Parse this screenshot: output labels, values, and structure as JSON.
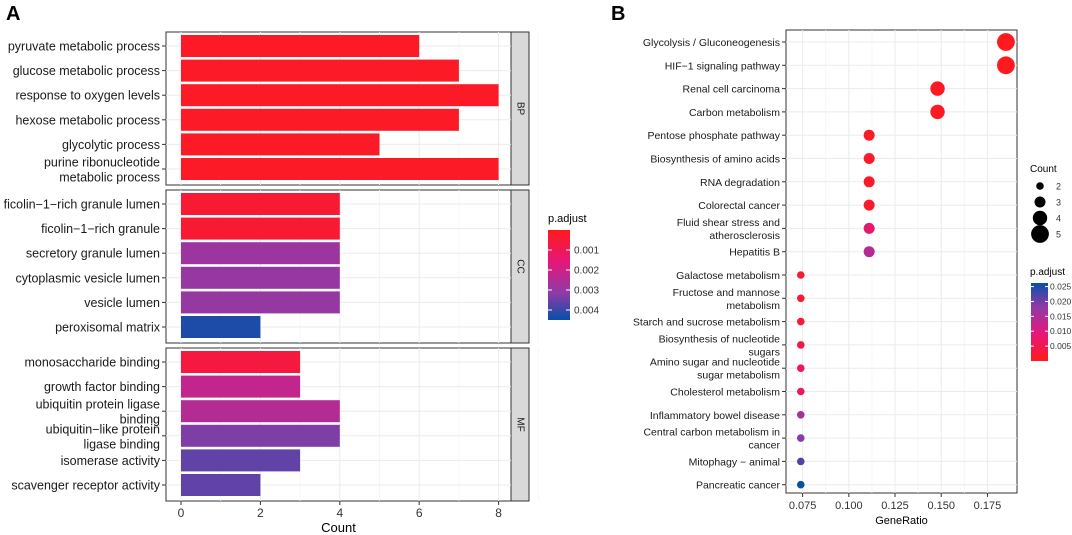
{
  "chart_data": [
    {
      "panel": "A",
      "type": "bar",
      "orientation": "horizontal",
      "xlabel": "Count",
      "xlim": [
        0,
        8.4
      ],
      "xticks": [
        0,
        2,
        4,
        6,
        8
      ],
      "facets": [
        {
          "strip": "BP",
          "categories": [
            "pyruvate metabolic process",
            "glucose metabolic process",
            "response to oxygen levels",
            "hexose metabolic process",
            "glycolytic process",
            "purine ribonucleotide metabolic process"
          ],
          "label_lines": [
            [
              "pyruvate metabolic process"
            ],
            [
              "glucose metabolic process"
            ],
            [
              "response to oxygen levels"
            ],
            [
              "hexose metabolic process"
            ],
            [
              "glycolytic process"
            ],
            [
              "purine ribonucleotide",
              "metabolic process"
            ]
          ],
          "values": [
            6,
            7,
            8,
            7,
            5,
            8
          ],
          "p_adjust": [
            0.0002,
            0.0002,
            0.0002,
            0.0002,
            0.0002,
            0.0002
          ]
        },
        {
          "strip": "CC",
          "categories": [
            "ficolin−1−rich granule lumen",
            "ficolin−1−rich granule",
            "secretory granule lumen",
            "cytoplasmic vesicle lumen",
            "vesicle lumen",
            "peroxisomal matrix"
          ],
          "label_lines": [
            [
              "ficolin−1−rich granule lumen"
            ],
            [
              "ficolin−1−rich granule"
            ],
            [
              "secretory granule lumen"
            ],
            [
              "cytoplasmic vesicle lumen"
            ],
            [
              "vesicle lumen"
            ],
            [
              "peroxisomal matrix"
            ]
          ],
          "values": [
            4,
            4,
            4,
            4,
            4,
            2
          ],
          "p_adjust": [
            0.0004,
            0.0004,
            0.0029,
            0.003,
            0.003,
            0.0043
          ]
        },
        {
          "strip": "MF",
          "categories": [
            "monosaccharide binding",
            "growth factor binding",
            "ubiquitin protein ligase binding",
            "ubiquitin−like protein ligase binding",
            "isomerase activity",
            "scavenger receptor activity"
          ],
          "label_lines": [
            [
              "monosaccharide binding"
            ],
            [
              "growth factor binding"
            ],
            [
              "ubiquitin protein ligase",
              "binding"
            ],
            [
              "ubiquitin−like protein",
              "ligase binding"
            ],
            [
              "isomerase activity"
            ],
            [
              "scavenger receptor activity"
            ]
          ],
          "values": [
            3,
            3,
            4,
            4,
            3,
            2
          ],
          "p_adjust": [
            0.0006,
            0.0022,
            0.0025,
            0.0033,
            0.0036,
            0.0036
          ]
        }
      ],
      "legend": {
        "title": "p.adjust",
        "range": [
          0.0,
          0.0045
        ],
        "ticks": [
          0.001,
          0.002,
          0.003,
          0.004
        ],
        "tick_labels": [
          "0.001",
          "0.002",
          "0.003",
          "0.004"
        ],
        "low_color": "#ff1a1a",
        "high_color": "#084fa8"
      }
    },
    {
      "panel": "B",
      "type": "scatter",
      "subtype": "dotplot",
      "xlabel": "GeneRatio",
      "xlim": [
        0.066,
        0.191
      ],
      "xticks": [
        0.075,
        0.1,
        0.125,
        0.15,
        0.175
      ],
      "xtick_labels": [
        "0.075",
        "0.100",
        "0.125",
        "0.150",
        "0.175"
      ],
      "categories": [
        "Glycolysis / Gluconeogenesis",
        "HIF−1 signaling pathway",
        "Renal cell carcinoma",
        "Carbon metabolism",
        "Pentose phosphate pathway",
        "Biosynthesis of amino acids",
        "RNA degradation",
        "Colorectal cancer",
        "Fluid shear stress and atherosclerosis",
        "Hepatitis B",
        "Galactose metabolism",
        "Fructose and mannose metabolism",
        "Starch and sucrose metabolism",
        "Biosynthesis of nucleotide sugars",
        "Amino sugar and nucleotide sugar metabolism",
        "Cholesterol metabolism",
        "Inflammatory bowel disease",
        "Central carbon metabolism in cancer",
        "Mitophagy − animal",
        "Pancreatic cancer"
      ],
      "label_lines": [
        [
          "Glycolysis / Gluconeogenesis"
        ],
        [
          "HIF−1 signaling pathway"
        ],
        [
          "Renal cell carcinoma"
        ],
        [
          "Carbon metabolism"
        ],
        [
          "Pentose phosphate pathway"
        ],
        [
          "Biosynthesis of amino acids"
        ],
        [
          "RNA degradation"
        ],
        [
          "Colorectal cancer"
        ],
        [
          "Fluid shear stress and",
          "atherosclerosis"
        ],
        [
          "Hepatitis B"
        ],
        [
          "Galactose metabolism"
        ],
        [
          "Fructose and mannose",
          "metabolism"
        ],
        [
          "Starch and sucrose metabolism"
        ],
        [
          "Biosynthesis of nucleotide",
          "sugars"
        ],
        [
          "Amino sugar and nucleotide",
          "sugar metabolism"
        ],
        [
          "Cholesterol metabolism"
        ],
        [
          "Inflammatory bowel disease"
        ],
        [
          "Central carbon metabolism in",
          "cancer"
        ],
        [
          "Mitophagy − animal"
        ],
        [
          "Pancreatic cancer"
        ]
      ],
      "gene_ratio": [
        0.185,
        0.185,
        0.148,
        0.148,
        0.111,
        0.111,
        0.111,
        0.111,
        0.111,
        0.111,
        0.074,
        0.074,
        0.074,
        0.074,
        0.074,
        0.074,
        0.074,
        0.074,
        0.074,
        0.074
      ],
      "count": [
        5,
        5,
        4,
        4,
        3,
        3,
        3,
        3,
        3,
        3,
        2,
        2,
        2,
        2,
        2,
        2,
        2,
        2,
        2,
        2
      ],
      "p_adjust": [
        0.0005,
        0.0005,
        0.0008,
        0.0008,
        0.0015,
        0.0015,
        0.0015,
        0.0015,
        0.008,
        0.014,
        0.0025,
        0.0025,
        0.003,
        0.004,
        0.006,
        0.007,
        0.016,
        0.019,
        0.022,
        0.026
      ],
      "size_legend": {
        "title": "Count",
        "values": [
          2,
          3,
          4,
          5
        ],
        "labels": [
          "2",
          "3",
          "4",
          "5"
        ]
      },
      "color_legend": {
        "title": "p.adjust",
        "range": [
          0.0,
          0.0262
        ],
        "ticks": [
          0.005,
          0.01,
          0.015,
          0.02,
          0.025
        ],
        "tick_labels": [
          "0.005",
          "0.010",
          "0.015",
          "0.020",
          "0.025"
        ],
        "low_color": "#ff1a1a",
        "high_color": "#084fa8"
      }
    }
  ],
  "panel_labels": {
    "a": "A",
    "b": "B"
  },
  "colors": {
    "grad_low": "#ff1a1a",
    "grad_mid1": "#e5177a",
    "grad_mid2": "#8e3ba6",
    "grad_high": "#084fa8",
    "panel_bg": "#ffffff",
    "grid": "#ebebeb",
    "strip_bg": "#d9d9d9"
  }
}
